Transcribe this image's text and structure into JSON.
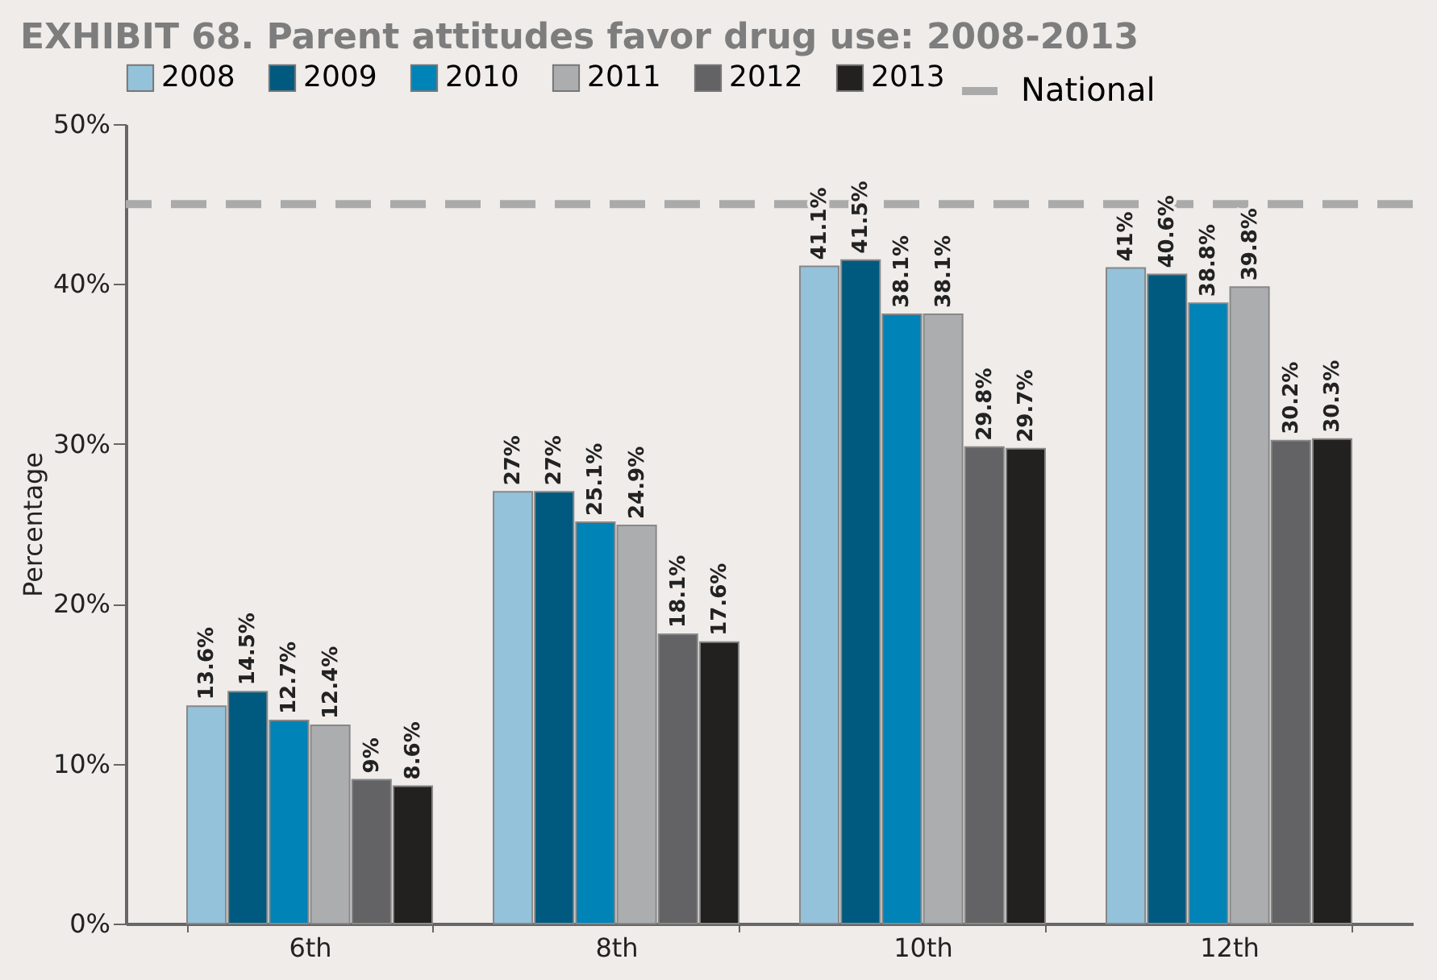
{
  "chart_data": {
    "type": "bar",
    "title": "EXHIBIT 68. Parent attitudes favor drug use: 2008-2013",
    "ylabel": "Percentage",
    "categories": [
      "6th",
      "8th",
      "10th",
      "12th"
    ],
    "series": [
      {
        "name": "2008",
        "color": "#94c2da",
        "values": [
          13.6,
          27,
          41.1,
          41
        ],
        "value_labels": [
          "13.6%",
          "27%",
          "41.1%",
          "41%"
        ]
      },
      {
        "name": "2009",
        "color": "#005a80",
        "values": [
          14.5,
          27,
          41.5,
          40.6
        ],
        "value_labels": [
          "14.5%",
          "27%",
          "41.5%",
          "40.6%"
        ]
      },
      {
        "name": "2010",
        "color": "#0083b6",
        "values": [
          12.7,
          25.1,
          38.1,
          38.8
        ],
        "value_labels": [
          "12.7%",
          "25.1%",
          "38.1%",
          "38.8%"
        ]
      },
      {
        "name": "2011",
        "color": "#acadaf",
        "values": [
          12.4,
          24.9,
          38.1,
          39.8
        ],
        "value_labels": [
          "12.4%",
          "24.9%",
          "38.1%",
          "39.8%"
        ]
      },
      {
        "name": "2012",
        "color": "#636264",
        "values": [
          9,
          18.1,
          29.8,
          30.2
        ],
        "value_labels": [
          "9%",
          "18.1%",
          "29.8%",
          "30.2%"
        ]
      },
      {
        "name": "2013",
        "color": "#222120",
        "values": [
          8.6,
          17.6,
          29.7,
          30.3
        ],
        "value_labels": [
          "8.6%",
          "17.6%",
          "29.7%",
          "30.3%"
        ]
      }
    ],
    "ylim": [
      0,
      50
    ],
    "yticks": [
      {
        "value": 0,
        "label": "0%"
      },
      {
        "value": 10,
        "label": "10%"
      },
      {
        "value": 20,
        "label": "20%"
      },
      {
        "value": 30,
        "label": "30%"
      },
      {
        "value": 40,
        "label": "40%"
      },
      {
        "value": 50,
        "label": "50%"
      }
    ],
    "ref_lines": [
      {
        "axis": "y",
        "value": 45,
        "label": "National",
        "color": "#aaaaaa",
        "line_style": "dashed"
      }
    ],
    "grid": false,
    "legend": "top"
  }
}
